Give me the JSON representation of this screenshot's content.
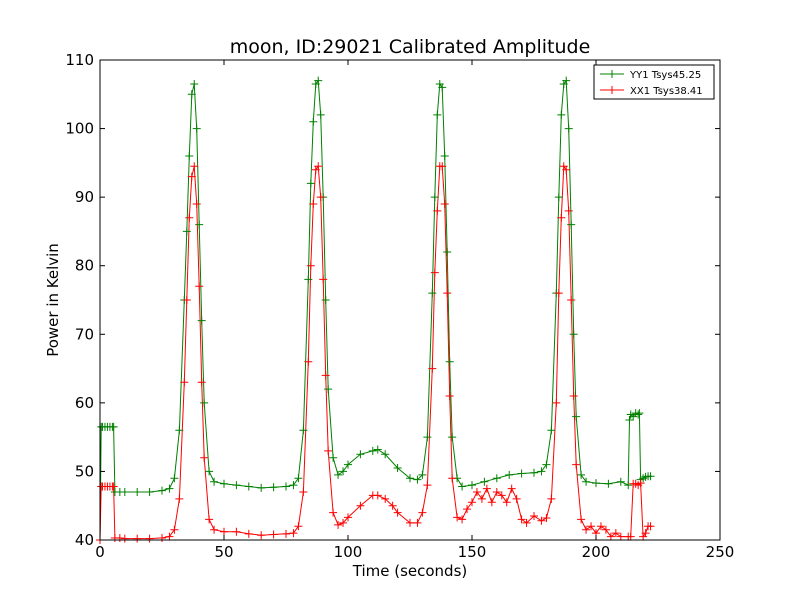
{
  "chart_data": {
    "type": "line",
    "title": "moon, ID:29021 Calibrated Amplitude",
    "xlabel": "Time (seconds)",
    "ylabel": "Power in Kelvin",
    "xlim": [
      0,
      250
    ],
    "ylim": [
      40,
      110
    ],
    "xticks": [
      0,
      50,
      100,
      150,
      200,
      250
    ],
    "yticks": [
      40,
      50,
      60,
      70,
      80,
      90,
      100,
      110
    ],
    "grid": false,
    "legend_position": "top-right",
    "marker": "plus",
    "series": [
      {
        "name": "YY1 Tsys45.25",
        "color": "#008000",
        "x": [
          0,
          0.5,
          1,
          2,
          3,
          4,
          5,
          5.5,
          6,
          8,
          10,
          15,
          20,
          25,
          28,
          30,
          32,
          34,
          35,
          36,
          37,
          38,
          39,
          40,
          41,
          42,
          44,
          46,
          50,
          55,
          60,
          65,
          70,
          75,
          78,
          80,
          82,
          84,
          85,
          86,
          87,
          88,
          89,
          90,
          91,
          92,
          94,
          96,
          98,
          100,
          105,
          110,
          112,
          115,
          120,
          125,
          128,
          130,
          132,
          134,
          135,
          136,
          137,
          138,
          139,
          140,
          141,
          142,
          144,
          146,
          150,
          155,
          160,
          165,
          170,
          175,
          178,
          180,
          182,
          184,
          185,
          186,
          187,
          188,
          189,
          190,
          191,
          192,
          194,
          196,
          200,
          205,
          210,
          213,
          213.5,
          214,
          215,
          216,
          217,
          217.5,
          218,
          219,
          220,
          221,
          222
        ],
        "y": [
          40,
          56.5,
          56.5,
          56.5,
          56.5,
          56.5,
          56.5,
          56.5,
          47,
          47,
          47,
          47,
          47,
          47.2,
          47.5,
          49,
          56,
          75,
          85,
          96,
          105,
          106.5,
          100,
          86,
          72,
          60,
          50,
          48.5,
          48.2,
          48,
          47.8,
          47.6,
          47.7,
          47.8,
          48,
          49,
          56,
          78,
          92,
          101,
          106.5,
          107,
          102,
          90,
          75,
          62,
          52,
          49.5,
          50,
          51,
          52.5,
          53,
          53.2,
          52.5,
          50.5,
          49,
          48.8,
          49.5,
          55,
          76,
          90,
          102,
          106.5,
          106,
          96,
          82,
          66,
          55,
          49,
          47.8,
          48,
          48.5,
          49,
          49.5,
          49.7,
          49.8,
          50,
          51,
          56,
          76,
          90,
          102,
          106.5,
          107,
          100,
          86,
          70,
          58,
          49.5,
          48.5,
          48.3,
          48.2,
          48.5,
          48,
          57.5,
          58.3,
          58,
          58.5,
          58.3,
          58.5,
          48.8,
          49,
          49.2,
          49.3,
          49.3
        ]
      },
      {
        "name": "XX1 Tsys38.41",
        "color": "#ff0000",
        "x": [
          0,
          0.5,
          1,
          2,
          3,
          4,
          5,
          5.5,
          6,
          8,
          10,
          15,
          20,
          25,
          28,
          30,
          32,
          34,
          35,
          36,
          37,
          38,
          39,
          40,
          41,
          42,
          44,
          46,
          50,
          55,
          60,
          65,
          70,
          75,
          78,
          80,
          82,
          84,
          85,
          86,
          87,
          88,
          89,
          90,
          91,
          92,
          94,
          96,
          98,
          100,
          105,
          110,
          112,
          115,
          118,
          120,
          125,
          128,
          130,
          132,
          134,
          135,
          136,
          137,
          138,
          139,
          140,
          141,
          142,
          144,
          146,
          148,
          150,
          152,
          154,
          156,
          158,
          160,
          162,
          164,
          166,
          168,
          170,
          172,
          175,
          178,
          180,
          182,
          184,
          185,
          186,
          187,
          188,
          189,
          190,
          191,
          192,
          194,
          196,
          198,
          200,
          202,
          204,
          206,
          208,
          210,
          213,
          214,
          215,
          216,
          217,
          218,
          219,
          220,
          221,
          222
        ],
        "y": [
          40,
          47.8,
          47.8,
          47.8,
          47.8,
          47.8,
          47.8,
          47.8,
          40.3,
          40.3,
          40.2,
          40.2,
          40.2,
          40.3,
          40.5,
          41.5,
          46,
          63,
          75,
          87,
          93,
          94.5,
          89,
          77,
          63,
          52,
          43,
          41.5,
          41.2,
          41.2,
          40.9,
          40.7,
          40.8,
          40.9,
          41,
          42,
          47,
          66,
          80,
          89,
          94,
          94.5,
          90,
          78,
          64,
          53,
          44,
          42.2,
          42.5,
          43.3,
          45,
          46.5,
          46.5,
          46,
          45,
          44,
          42.5,
          42.5,
          44,
          48,
          65,
          79,
          88,
          94.5,
          94.5,
          89,
          76,
          61,
          49,
          43.3,
          43,
          44.5,
          45.5,
          47,
          46,
          47.5,
          45.5,
          47,
          46.5,
          45.5,
          47.5,
          46,
          43,
          42.5,
          43.5,
          42.8,
          43.2,
          46,
          60,
          76,
          87,
          94.5,
          94,
          88,
          75,
          61,
          51,
          43,
          41.5,
          42,
          41,
          42,
          41.5,
          40.5,
          41,
          40.5,
          40.5,
          40.5,
          48.2,
          48.2,
          48,
          48.3,
          40.5,
          41,
          42,
          42
        ]
      }
    ]
  }
}
